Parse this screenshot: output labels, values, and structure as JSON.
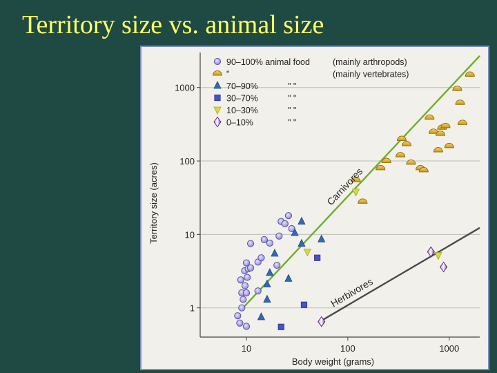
{
  "slide": {
    "title": "Territory size vs. animal size"
  },
  "chart_data": {
    "type": "scatter",
    "title": "",
    "xlabel": "Body weight (grams)",
    "ylabel": "Territory size (acres)",
    "x_scale": "log",
    "y_scale": "log",
    "xlim": [
      3.5,
      2000
    ],
    "ylim": [
      0.4,
      3000
    ],
    "x_ticks": [
      "10",
      "100",
      "1000"
    ],
    "y_ticks": [
      "1",
      "10",
      "100",
      "1000"
    ],
    "grid": true,
    "legend_position": "top-left",
    "legend": [
      {
        "label": "90–100% animal food",
        "note": "(mainly arthropods)"
      },
      {
        "label": "\"",
        "note": "(mainly vertebrates)"
      },
      {
        "label": "70–90%",
        "note": "\"    \""
      },
      {
        "label": "30–70%",
        "note": "\"    \""
      },
      {
        "label": "10–30%",
        "note": "\"    \""
      },
      {
        "label": "0–10%",
        "note": "\"    \""
      }
    ],
    "series": [
      {
        "marker": "circle",
        "color": "#8f88d6",
        "points": [
          [
            8.6,
            0.62
          ],
          [
            10,
            0.56
          ],
          [
            8.2,
            0.78
          ],
          [
            9,
            1.0
          ],
          [
            9.3,
            1.3
          ],
          [
            9,
            1.6
          ],
          [
            8.8,
            2.4
          ],
          [
            9.7,
            2.0
          ],
          [
            10,
            1.6
          ],
          [
            10.2,
            2.6
          ],
          [
            9.6,
            3.2
          ],
          [
            10.4,
            3.4
          ],
          [
            11,
            3.5
          ],
          [
            10,
            4.1
          ],
          [
            11,
            7.5
          ],
          [
            13,
            1.7
          ],
          [
            13,
            4.2
          ],
          [
            14,
            4.8
          ],
          [
            15,
            8.5
          ],
          [
            17,
            7.6
          ],
          [
            20,
            3.8
          ],
          [
            21,
            9.5
          ],
          [
            22,
            15
          ],
          [
            24,
            14
          ],
          [
            26,
            18
          ],
          [
            28,
            12
          ]
        ]
      },
      {
        "marker": "semicircle",
        "color": "#e7b830",
        "points": [
          [
            120,
            55
          ],
          [
            140,
            28
          ],
          [
            210,
            80
          ],
          [
            240,
            100
          ],
          [
            330,
            120
          ],
          [
            340,
            200
          ],
          [
            380,
            170
          ],
          [
            420,
            95
          ],
          [
            520,
            80
          ],
          [
            560,
            75
          ],
          [
            640,
            390
          ],
          [
            700,
            250
          ],
          [
            780,
            140
          ],
          [
            820,
            235
          ],
          [
            850,
            285
          ],
          [
            920,
            300
          ],
          [
            1000,
            160
          ],
          [
            1200,
            960
          ],
          [
            1280,
            620
          ],
          [
            1350,
            330
          ],
          [
            1600,
            1500
          ]
        ]
      },
      {
        "marker": "triangle",
        "color": "#2f6ab8",
        "points": [
          [
            14,
            0.75
          ],
          [
            16,
            1.3
          ],
          [
            16,
            2.1
          ],
          [
            17,
            3.0
          ],
          [
            19,
            5.5
          ],
          [
            26,
            2.5
          ],
          [
            30,
            10.5
          ],
          [
            35,
            15
          ],
          [
            35,
            7.5
          ],
          [
            55,
            8.6
          ]
        ]
      },
      {
        "marker": "square",
        "color": "#4654c4",
        "points": [
          [
            22,
            0.55
          ],
          [
            37,
            1.1
          ],
          [
            50,
            4.8
          ]
        ]
      },
      {
        "marker": "triangle-down",
        "color": "#d8d840",
        "points": [
          [
            40,
            5.8
          ],
          [
            120,
            38
          ],
          [
            780,
            5.2
          ]
        ]
      },
      {
        "marker": "diamond",
        "color": "#9a4fc2",
        "points": [
          [
            55,
            0.65
          ],
          [
            660,
            5.8
          ],
          [
            880,
            3.6
          ]
        ]
      }
    ],
    "fit_lines": [
      {
        "name": "Carnivores",
        "color": "#6fae2c",
        "from": [
          9,
          0.96
        ],
        "to": [
          2000,
          2700
        ]
      },
      {
        "name": "Herbivores",
        "color": "#4a4a4a",
        "from": [
          55,
          0.67
        ],
        "to": [
          2000,
          12.3
        ]
      }
    ]
  }
}
